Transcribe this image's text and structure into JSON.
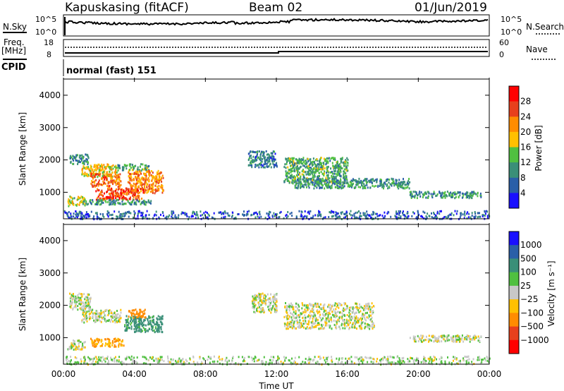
{
  "header": {
    "station": "Kapuskasing (fitACF)",
    "beam": "Beam 02",
    "date": "01/Jun/2019"
  },
  "noise_panel": {
    "left_label": "N.Sky",
    "right_label": "N.Search",
    "left_ticks": [
      "10^5",
      "10^0"
    ],
    "right_ticks": [
      "10^5",
      "10^0"
    ],
    "trace_color": "#000000"
  },
  "freq_panel": {
    "left_label_top": "Freq.",
    "left_label_bottom": "[MHz]",
    "left_ticks": [
      "18",
      "8"
    ],
    "right_label": "Nave",
    "right_ticks": [
      "60",
      "0"
    ],
    "cpid_label": "CPID",
    "cpid_text": "normal (fast) 151"
  },
  "x_axis": {
    "label": "Time UT",
    "ticks": [
      "00:00",
      "04:00",
      "08:00",
      "12:00",
      "16:00",
      "20:00",
      "00:00"
    ]
  },
  "chart_data": [
    {
      "type": "heatmap",
      "name": "power",
      "ylabel": "Slant Range [km]",
      "yticks": [
        1000,
        2000,
        3000,
        4000
      ],
      "ylim": [
        180,
        4500
      ],
      "xlim": [
        0,
        24
      ],
      "colorbar": {
        "label": "Power [dB]",
        "ticks": [
          "28",
          "24",
          "20",
          "16",
          "12",
          "8",
          "4"
        ],
        "colors": [
          "#ff0000",
          "#e8401c",
          "#ff8c00",
          "#ffc000",
          "#50c040",
          "#3a8f78",
          "#2a5fa8",
          "#1a10ff"
        ]
      },
      "echo_regions": [
        {
          "x": [
            0.3,
            1.4
          ],
          "y": [
            1900,
            2200
          ],
          "level": 12
        },
        {
          "x": [
            1.0,
            3.0
          ],
          "y": [
            1500,
            1900
          ],
          "level": 20
        },
        {
          "x": [
            3.0,
            4.8
          ],
          "y": [
            1700,
            1900
          ],
          "level": 14
        },
        {
          "x": [
            1.5,
            3.2
          ],
          "y": [
            1200,
            1600
          ],
          "level": 26
        },
        {
          "x": [
            3.6,
            5.6
          ],
          "y": [
            1000,
            1700
          ],
          "level": 24
        },
        {
          "x": [
            1.8,
            4.5
          ],
          "y": [
            800,
            1150
          ],
          "level": 28
        },
        {
          "x": [
            0.2,
            1.2
          ],
          "y": [
            600,
            900
          ],
          "level": 18
        },
        {
          "x": [
            1.0,
            5.0
          ],
          "y": [
            650,
            800
          ],
          "level": 12
        },
        {
          "x": [
            10.4,
            12.0
          ],
          "y": [
            1800,
            2300
          ],
          "level": 10
        },
        {
          "x": [
            12.4,
            16.0
          ],
          "y": [
            1300,
            2100
          ],
          "level": 14
        },
        {
          "x": [
            13.0,
            19.5
          ],
          "y": [
            1150,
            1450
          ],
          "level": 12
        },
        {
          "x": [
            19.5,
            23.5
          ],
          "y": [
            850,
            1050
          ],
          "level": 12
        },
        {
          "x": [
            0.0,
            24.0
          ],
          "y": [
            200,
            450
          ],
          "level": 8
        }
      ]
    },
    {
      "type": "heatmap",
      "name": "velocity",
      "ylabel": "Slant Range [km]",
      "yticks": [
        1000,
        2000,
        3000,
        4000
      ],
      "ylim": [
        180,
        4500
      ],
      "xlim": [
        0,
        24
      ],
      "colorbar": {
        "label": "Velocity [m s⁻¹]",
        "ticks": [
          "1000",
          "500",
          "100",
          "25",
          "−25",
          "−100",
          "−500",
          "−1000"
        ],
        "colors": [
          "#1a10ff",
          "#2a5fa8",
          "#3a8f78",
          "#50c040",
          "#c8c8c8",
          "#ffc000",
          "#ff8c00",
          "#e8401c",
          "#ff0000"
        ]
      },
      "echo_regions": [
        {
          "x": [
            0.3,
            1.5
          ],
          "y": [
            1900,
            2400
          ],
          "level": 0
        },
        {
          "x": [
            1.0,
            3.2
          ],
          "y": [
            1500,
            1900
          ],
          "level": 0
        },
        {
          "x": [
            3.4,
            5.6
          ],
          "y": [
            1200,
            1700
          ],
          "level": 150
        },
        {
          "x": [
            3.6,
            4.6
          ],
          "y": [
            1650,
            1900
          ],
          "level": -300
        },
        {
          "x": [
            1.5,
            3.4
          ],
          "y": [
            750,
            1000
          ],
          "level": -100
        },
        {
          "x": [
            0.2,
            1.2
          ],
          "y": [
            650,
            950
          ],
          "level": 0
        },
        {
          "x": [
            10.6,
            12.0
          ],
          "y": [
            1800,
            2400
          ],
          "level": 0
        },
        {
          "x": [
            12.4,
            17.5
          ],
          "y": [
            1300,
            2100
          ],
          "level": 0
        },
        {
          "x": [
            19.5,
            23.5
          ],
          "y": [
            900,
            1100
          ],
          "level": 0
        },
        {
          "x": [
            0.0,
            24.0
          ],
          "y": [
            200,
            450
          ],
          "level": 20
        }
      ]
    }
  ]
}
